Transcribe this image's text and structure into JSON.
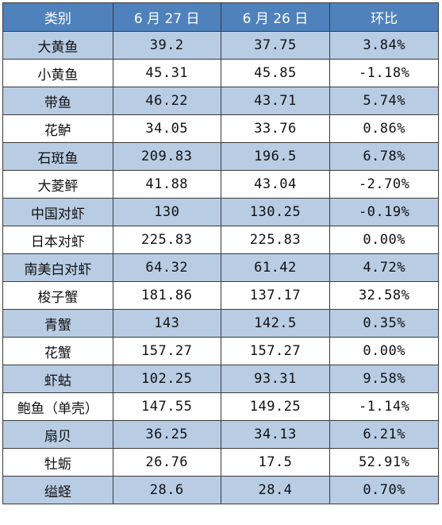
{
  "table": {
    "headers": [
      "类别",
      "6 月 27 日",
      "6 月 26 日",
      "环比"
    ],
    "rows": [
      [
        "大黄鱼",
        "39.2",
        "37.75",
        "3.84%"
      ],
      [
        "小黄鱼",
        "45.31",
        "45.85",
        "-1.18%"
      ],
      [
        "带鱼",
        "46.22",
        "43.71",
        "5.74%"
      ],
      [
        "花鲈",
        "34.05",
        "33.76",
        "0.86%"
      ],
      [
        "石斑鱼",
        "209.83",
        "196.5",
        "6.78%"
      ],
      [
        "大菱鲆",
        "41.88",
        "43.04",
        "-2.70%"
      ],
      [
        "中国对虾",
        "130",
        "130.25",
        "-0.19%"
      ],
      [
        "日本对虾",
        "225.83",
        "225.83",
        "0.00%"
      ],
      [
        "南美白对虾",
        "64.32",
        "61.42",
        "4.72%"
      ],
      [
        "梭子蟹",
        "181.86",
        "137.17",
        "32.58%"
      ],
      [
        "青蟹",
        "143",
        "142.5",
        "0.35%"
      ],
      [
        "花蟹",
        "157.27",
        "157.27",
        "0.00%"
      ],
      [
        "虾蛄",
        "102.25",
        "93.31",
        "9.58%"
      ],
      [
        "鲍鱼（单壳）",
        "147.55",
        "149.25",
        "-1.14%"
      ],
      [
        "扇贝",
        "36.25",
        "34.13",
        "6.21%"
      ],
      [
        "牡蛎",
        "26.76",
        "17.5",
        "52.91%"
      ],
      [
        "缢蛏",
        "28.6",
        "28.4",
        "0.70%"
      ]
    ]
  },
  "colors": {
    "header_bg": "#4f81bd",
    "band_bg": "#b8cce4",
    "row_bg": "#ffffff"
  }
}
